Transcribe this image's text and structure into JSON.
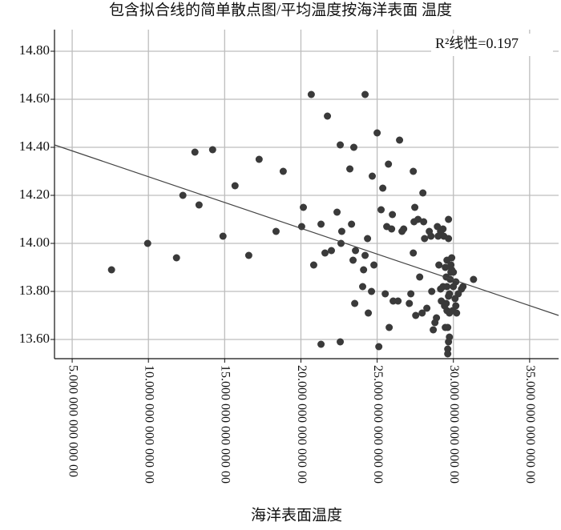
{
  "chart_data": {
    "type": "scatter",
    "title": "包含拟合线的简单散点图/平均温度按海洋表面 温度",
    "x_label": "海洋表面温度",
    "annotation": "R²线性=0.197",
    "color": "#3a3a3a",
    "grid": true,
    "xlim": [
      3.84,
      36.9
    ],
    "ylim": [
      13.52,
      14.89
    ],
    "xticks": [
      {
        "value": 5,
        "label": "5.000 000 000 000 00"
      },
      {
        "value": 10,
        "label": "10.000 000 000 000 00"
      },
      {
        "value": 15,
        "label": "15.000 000 000 000 00"
      },
      {
        "value": 20,
        "label": "20.000 000 000 000 00"
      },
      {
        "value": 25,
        "label": "25.000 000 000 000 00"
      },
      {
        "value": 30,
        "label": "30.000 000 000 000 00"
      },
      {
        "value": 35,
        "label": "35.000 000 000 000 00"
      }
    ],
    "yticks": [
      {
        "value": 13.6,
        "label": "13.60"
      },
      {
        "value": 13.8,
        "label": "13.80"
      },
      {
        "value": 14.0,
        "label": "14.00"
      },
      {
        "value": 14.2,
        "label": "14.20"
      },
      {
        "value": 14.4,
        "label": "14.40"
      },
      {
        "value": 14.6,
        "label": "14.60"
      },
      {
        "value": 14.8,
        "label": "14.80"
      }
    ],
    "x": [
      7.58,
      9.95,
      11.84,
      12.26,
      13.05,
      13.32,
      14.21,
      14.89,
      15.68,
      16.58,
      17.26,
      18.37,
      18.84,
      20.16,
      20.05,
      20.68,
      20.84,
      21.32,
      21.58,
      21.74,
      22.0,
      22.37,
      22.58,
      22.68,
      22.58,
      21.32,
      22.63,
      23.21,
      23.47,
      23.42,
      23.58,
      23.32,
      23.53,
      24.11,
      24.21,
      24.37,
      24.05,
      24.21,
      24.42,
      24.63,
      24.68,
      24.79,
      25.0,
      25.11,
      25.26,
      25.37,
      25.53,
      25.63,
      25.74,
      26.0,
      25.79,
      25.95,
      26.05,
      26.37,
      26.47,
      26.63,
      26.74,
      27.11,
      27.21,
      27.37,
      27.47,
      27.37,
      27.42,
      27.53,
      27.68,
      27.79,
      28.0,
      27.95,
      28.05,
      28.11,
      28.26,
      28.42,
      28.53,
      28.58,
      28.68,
      28.79,
      28.89,
      28.95,
      29.0,
      29.05,
      29.16,
      29.16,
      29.21,
      29.32,
      29.32,
      29.37,
      29.42,
      29.47,
      29.47,
      29.53,
      29.53,
      29.58,
      29.58,
      29.58,
      29.63,
      29.63,
      29.68,
      29.68,
      29.68,
      29.68,
      29.74,
      29.74,
      29.79,
      29.84,
      29.84,
      29.89,
      29.89,
      29.95,
      30.0,
      30.0,
      30.11,
      30.16,
      30.21,
      30.16,
      30.32,
      30.53,
      30.63,
      31.32,
      29.74,
      29.63
    ],
    "values": [
      13.89,
      14.0,
      13.94,
      14.2,
      14.38,
      14.16,
      14.39,
      14.03,
      14.24,
      13.95,
      14.35,
      14.05,
      14.3,
      14.15,
      14.07,
      14.62,
      13.91,
      14.08,
      13.96,
      14.53,
      13.97,
      14.13,
      14.41,
      14.05,
      13.59,
      13.58,
      14.0,
      14.31,
      14.4,
      13.93,
      13.97,
      14.08,
      13.75,
      13.89,
      14.62,
      14.02,
      13.82,
      13.95,
      13.71,
      13.8,
      14.28,
      13.91,
      14.46,
      13.57,
      14.14,
      14.23,
      13.79,
      14.07,
      14.33,
      14.12,
      13.65,
      14.06,
      13.76,
      13.76,
      14.43,
      14.05,
      14.06,
      13.75,
      13.79,
      14.3,
      14.15,
      13.96,
      14.09,
      13.7,
      14.1,
      13.86,
      14.21,
      13.71,
      14.09,
      14.02,
      13.73,
      14.05,
      14.03,
      13.8,
      13.64,
      13.67,
      13.69,
      14.07,
      14.03,
      13.91,
      14.05,
      13.81,
      13.76,
      14.06,
      13.82,
      14.03,
      13.74,
      13.65,
      13.9,
      13.75,
      13.86,
      13.72,
      13.93,
      13.82,
      13.56,
      13.54,
      13.59,
      13.78,
      14.1,
      14.02,
      13.71,
      13.79,
      13.85,
      13.88,
      13.91,
      13.94,
      13.89,
      13.72,
      13.88,
      13.82,
      13.77,
      13.74,
      13.71,
      13.84,
      13.79,
      13.81,
      13.82,
      13.85,
      13.61,
      13.65
    ],
    "fit_line": {
      "x": [
        3.84,
        36.9
      ],
      "values": [
        14.41,
        13.7
      ]
    }
  }
}
